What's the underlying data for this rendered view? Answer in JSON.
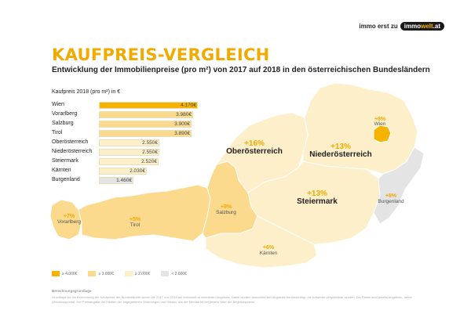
{
  "brand": {
    "prefix": "immo erst zu",
    "pill_a": "immo",
    "pill_b": "welt",
    "pill_c": ".at"
  },
  "title": "KAUFPREIS-VERGLEICH",
  "subtitle": "Entwicklung der Immobilienpreise (pro m²) von 2017 auf 2018 in den österreichischen Bundesländern",
  "table_title": "Kaufpreis 2018 (pro m²) in €",
  "colors": {
    "tier1": "#f5b300",
    "tier2": "#fbd98d",
    "tier3": "#fdefc9",
    "tier4": "#e4e4e4",
    "accent": "#f2a900"
  },
  "legend": [
    {
      "label": "≥ 4.000€",
      "color": "#f5b300"
    },
    {
      "label": "≥ 3.000€",
      "color": "#fbd98d"
    },
    {
      "label": "≥ 2.000€",
      "color": "#fdefc9"
    },
    {
      "label": "< 2.000€",
      "color": "#e4e4e4"
    }
  ],
  "notes_title": "Berechnungsgrundlage",
  "notes": "Grundlage für die Berechnung der Kaufpreise der Bundesländer waren die 2017 und 2018 auf immowelt.at inserierten Angebote. Dabei wurden ausschließlich Angebote berücksichtigt, die entweder vergleichbar wurden. Die Preise sind jeweils Angebots-, keine Abschlusspreise. Der Preisangabe der Median der angegebenen Wohnungen und Häuser aus der Median ist der jeweils Wert der Angebotspreise.",
  "chart_data": {
    "type": "bar",
    "title": "Kaufpreis 2018 (pro m²) in €",
    "categories": [
      "Wien",
      "Vorarlberg",
      "Salzburg",
      "Tirol",
      "Oberösterreich",
      "Niederösterreich",
      "Steiermark",
      "Kärnten",
      "Burgenland"
    ],
    "values": [
      4170,
      3980,
      3900,
      3890,
      2550,
      2550,
      2520,
      2030,
      1460
    ],
    "value_labels": [
      "4.170€",
      "3.980€",
      "3.900€",
      "3.890€",
      "2.550€",
      "2.550€",
      "2.520€",
      "2.030€",
      "1.460€"
    ],
    "change_2017_2018": [
      {
        "region": "Wien",
        "change": "+8%"
      },
      {
        "region": "Vorarlberg",
        "change": "+7%"
      },
      {
        "region": "Tirol",
        "change": "+5%"
      },
      {
        "region": "Salzburg",
        "change": "+9%"
      },
      {
        "region": "Oberösterreich",
        "change": "+16%"
      },
      {
        "region": "Niederösterreich",
        "change": "+13%"
      },
      {
        "region": "Steiermark",
        "change": "+13%"
      },
      {
        "region": "Kärnten",
        "change": "+6%"
      },
      {
        "region": "Burgenland",
        "change": "+8%"
      }
    ],
    "xlim": [
      0,
      4170
    ],
    "unit": "€ pro m²"
  }
}
